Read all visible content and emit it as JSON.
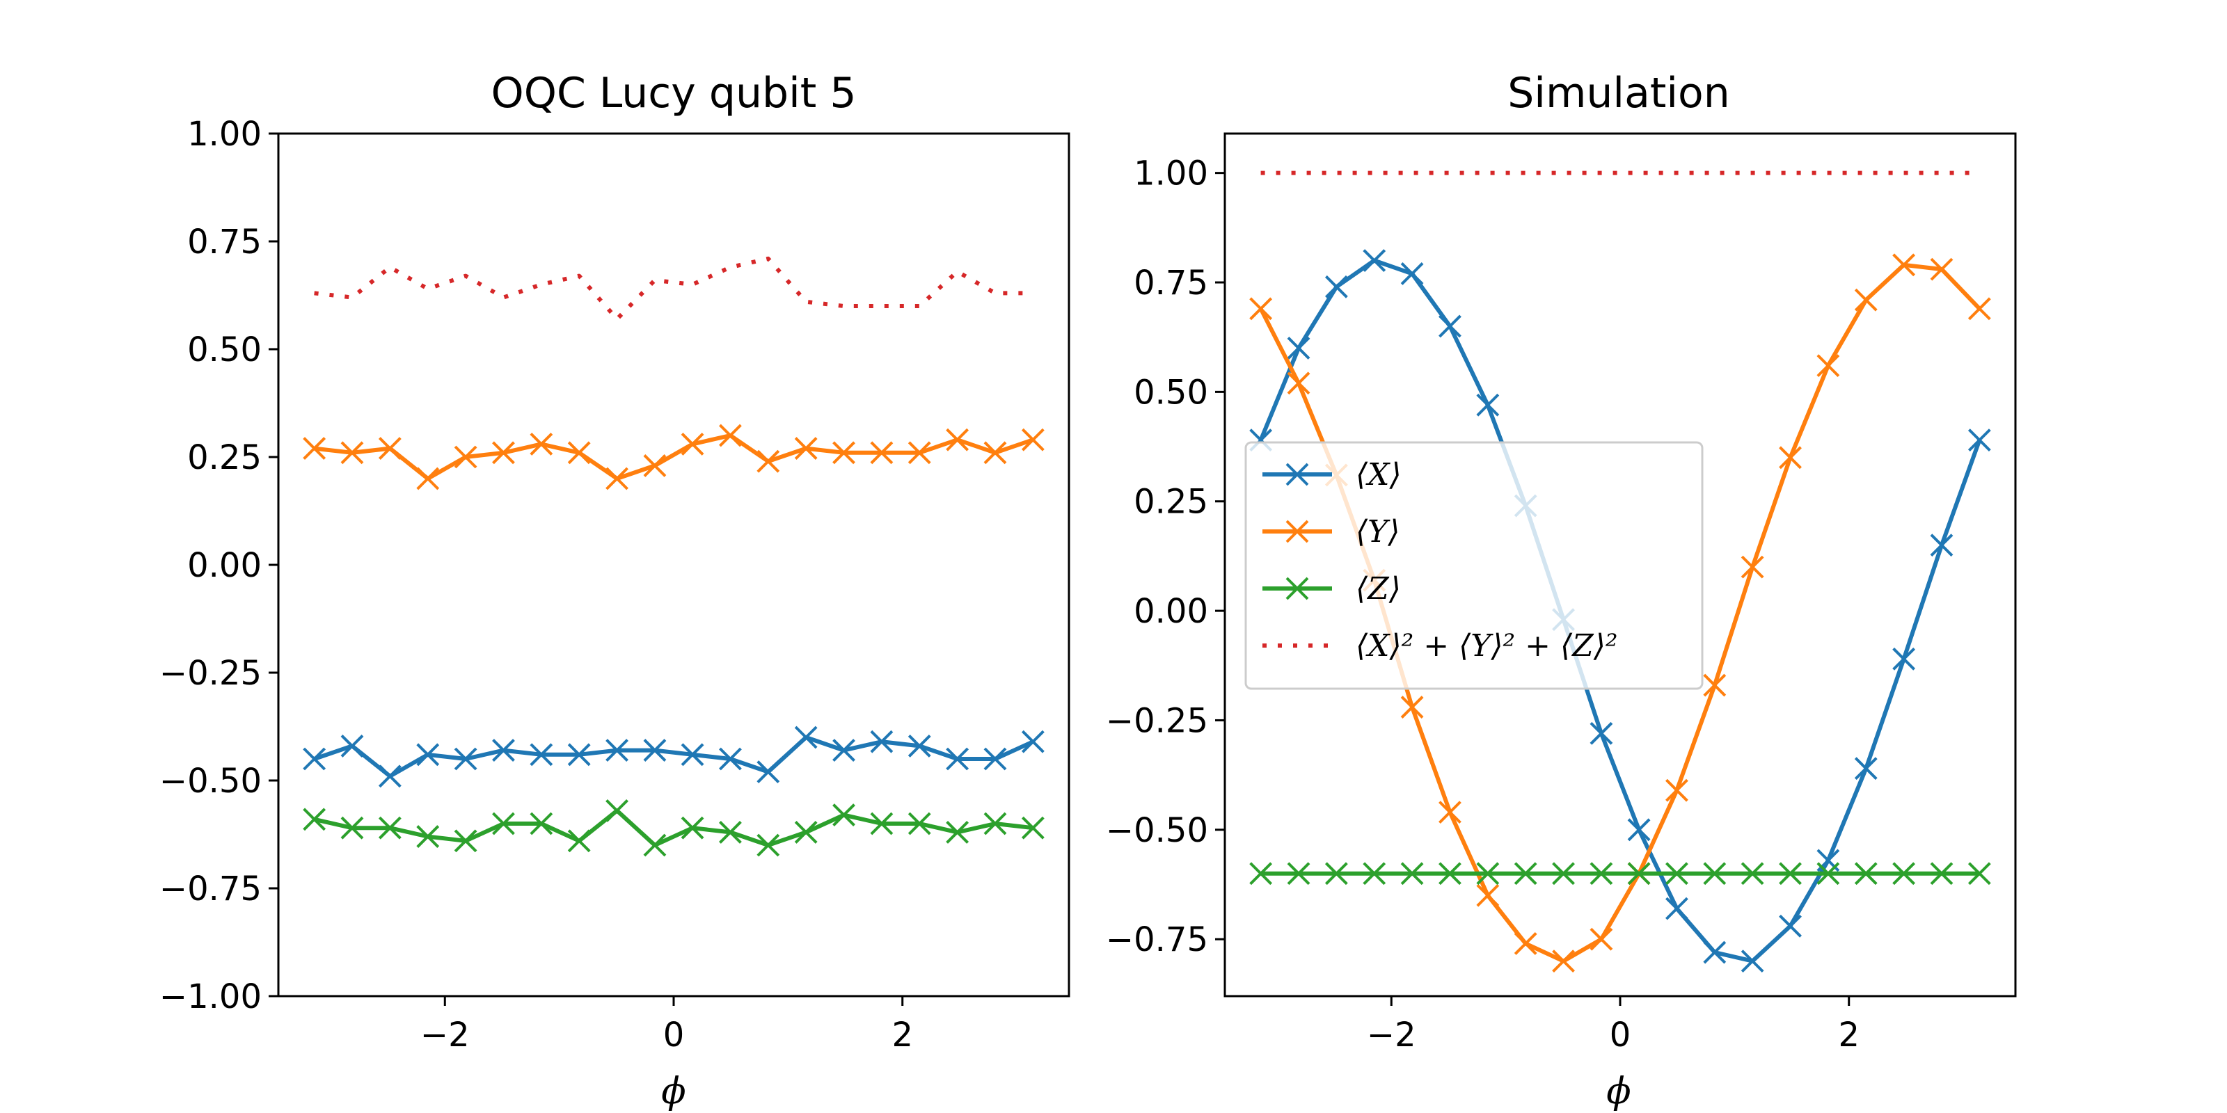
{
  "chart_data": [
    {
      "type": "line",
      "title": "OQC Lucy qubit 5",
      "xlabel": "ϕ",
      "ylabel": "",
      "xlim": [
        -3.4558,
        3.4558
      ],
      "ylim": [
        -1.0,
        1.0
      ],
      "xticks": [
        -2,
        0,
        2
      ],
      "xtick_labels": [
        "−2",
        "0",
        "2"
      ],
      "yticks": [
        -1.0,
        -0.75,
        -0.5,
        -0.25,
        0.0,
        0.25,
        0.5,
        0.75,
        1.0
      ],
      "ytick_labels": [
        "−1.00",
        "−0.75",
        "−0.50",
        "−0.25",
        "0.00",
        "0.25",
        "0.50",
        "0.75",
        "1.00"
      ],
      "grid": false,
      "x": [
        -3.1416,
        -2.8108,
        -2.48,
        -2.1493,
        -1.8185,
        -1.4878,
        -1.157,
        -0.8262,
        -0.4955,
        -0.1647,
        0.1647,
        0.4955,
        0.8262,
        1.157,
        1.4878,
        1.8185,
        2.1493,
        2.48,
        2.8108,
        3.1416
      ],
      "series": [
        {
          "name": "⟨X⟩",
          "color": "#1f77b4",
          "style": "solid",
          "marker": "x",
          "values": [
            -0.45,
            -0.42,
            -0.49,
            -0.44,
            -0.45,
            -0.43,
            -0.44,
            -0.44,
            -0.43,
            -0.43,
            -0.44,
            -0.45,
            -0.48,
            -0.4,
            -0.43,
            -0.41,
            -0.42,
            -0.45,
            -0.45,
            -0.41
          ]
        },
        {
          "name": "⟨Y⟩",
          "color": "#ff7f0e",
          "style": "solid",
          "marker": "x",
          "values": [
            0.27,
            0.26,
            0.27,
            0.2,
            0.25,
            0.26,
            0.28,
            0.26,
            0.2,
            0.23,
            0.28,
            0.3,
            0.24,
            0.27,
            0.26,
            0.26,
            0.26,
            0.29,
            0.26,
            0.29
          ]
        },
        {
          "name": "⟨Z⟩",
          "color": "#2ca02c",
          "style": "solid",
          "marker": "x",
          "values": [
            -0.59,
            -0.61,
            -0.61,
            -0.63,
            -0.64,
            -0.6,
            -0.6,
            -0.64,
            -0.57,
            -0.65,
            -0.61,
            -0.62,
            -0.65,
            -0.62,
            -0.58,
            -0.6,
            -0.6,
            -0.62,
            -0.6,
            -0.61
          ]
        },
        {
          "name": "⟨X⟩² + ⟨Y⟩² + ⟨Z⟩²",
          "color": "#d62728",
          "style": "dotted",
          "marker": "none",
          "values": [
            0.63,
            0.62,
            0.69,
            0.64,
            0.67,
            0.62,
            0.65,
            0.67,
            0.57,
            0.66,
            0.65,
            0.69,
            0.71,
            0.61,
            0.6,
            0.6,
            0.6,
            0.68,
            0.63,
            0.63
          ]
        }
      ],
      "legend": false
    },
    {
      "type": "line",
      "title": "Simulation",
      "xlabel": "ϕ",
      "ylabel": "",
      "xlim": [
        -3.4558,
        3.4558
      ],
      "ylim": [
        -0.88,
        1.09
      ],
      "xticks": [
        -2,
        0,
        2
      ],
      "xtick_labels": [
        "−2",
        "0",
        "2"
      ],
      "yticks": [
        -0.75,
        -0.5,
        -0.25,
        0.0,
        0.25,
        0.5,
        0.75,
        1.0
      ],
      "ytick_labels": [
        "−0.75",
        "−0.50",
        "−0.25",
        "0.00",
        "0.25",
        "0.50",
        "0.75",
        "1.00"
      ],
      "grid": false,
      "x": [
        -3.1416,
        -2.8108,
        -2.48,
        -2.1493,
        -1.8185,
        -1.4878,
        -1.157,
        -0.8262,
        -0.4955,
        -0.1647,
        0.1647,
        0.4955,
        0.8262,
        1.157,
        1.4878,
        1.8185,
        2.1493,
        2.48,
        2.8108,
        3.1416
      ],
      "series": [
        {
          "name": "⟨X⟩",
          "color": "#1f77b4",
          "style": "solid",
          "marker": "x",
          "values": [
            0.39,
            0.6,
            0.74,
            0.8,
            0.77,
            0.65,
            0.47,
            0.24,
            -0.02,
            -0.28,
            -0.5,
            -0.68,
            -0.78,
            -0.8,
            -0.72,
            -0.57,
            -0.36,
            -0.11,
            0.15,
            0.39
          ]
        },
        {
          "name": "⟨Y⟩",
          "color": "#ff7f0e",
          "style": "solid",
          "marker": "x",
          "values": [
            0.69,
            0.52,
            0.31,
            0.07,
            -0.22,
            -0.46,
            -0.65,
            -0.76,
            -0.8,
            -0.75,
            -0.6,
            -0.41,
            -0.17,
            0.1,
            0.35,
            0.56,
            0.71,
            0.79,
            0.78,
            0.69
          ]
        },
        {
          "name": "⟨Z⟩",
          "color": "#2ca02c",
          "style": "solid",
          "marker": "x",
          "values": [
            -0.6,
            -0.6,
            -0.6,
            -0.6,
            -0.6,
            -0.6,
            -0.6,
            -0.6,
            -0.6,
            -0.6,
            -0.6,
            -0.6,
            -0.6,
            -0.6,
            -0.6,
            -0.6,
            -0.6,
            -0.6,
            -0.6,
            -0.6
          ]
        },
        {
          "name": "⟨X⟩² + ⟨Y⟩² + ⟨Z⟩²",
          "color": "#d62728",
          "style": "dotted",
          "marker": "none",
          "values": [
            1.0,
            1.0,
            1.0,
            1.0,
            1.0,
            1.0,
            1.0,
            1.0,
            1.0,
            1.0,
            1.0,
            1.0,
            1.0,
            1.0,
            1.0,
            1.0,
            1.0,
            1.0,
            1.0,
            1.0
          ]
        }
      ],
      "legend": true,
      "legend_placement": "center-left",
      "legend_entries": [
        {
          "label": "⟨X⟩",
          "color": "#1f77b4",
          "style": "solid",
          "marker": "x"
        },
        {
          "label": "⟨Y⟩",
          "color": "#ff7f0e",
          "style": "solid",
          "marker": "x"
        },
        {
          "label": "⟨Z⟩",
          "color": "#2ca02c",
          "style": "solid",
          "marker": "x"
        },
        {
          "label": "⟨X⟩² + ⟨Y⟩² + ⟨Z⟩²",
          "color": "#d62728",
          "style": "dotted",
          "marker": "none"
        }
      ]
    }
  ]
}
